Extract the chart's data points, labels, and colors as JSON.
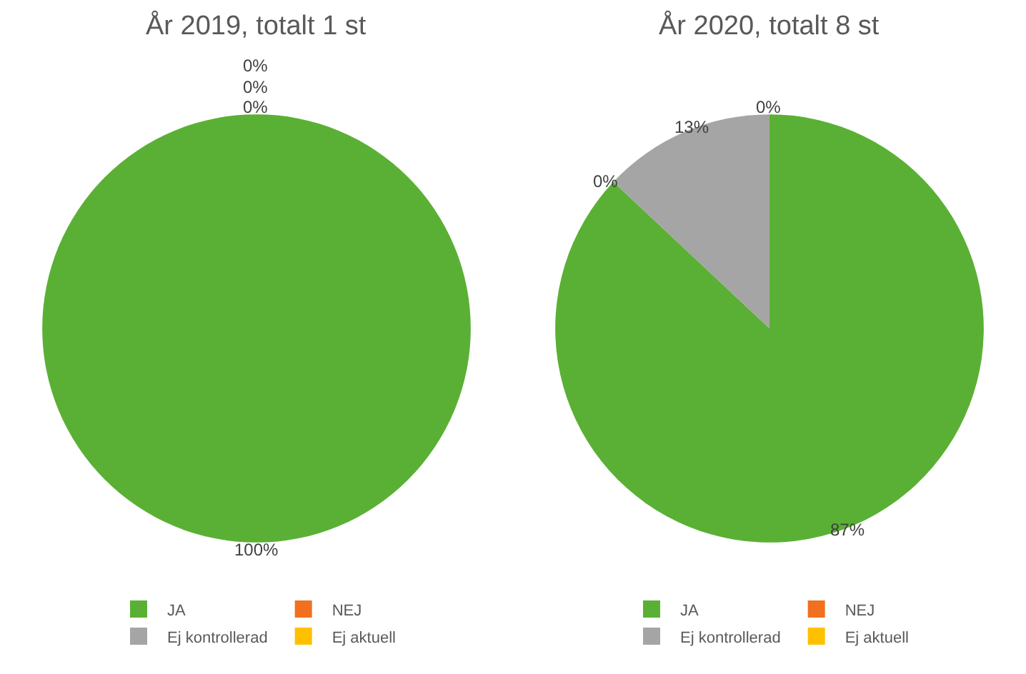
{
  "chart_data": [
    {
      "type": "pie",
      "title": "År 2019, totalt 1 st",
      "categories": [
        "JA",
        "NEJ",
        "Ej kontrollerad",
        "Ej aktuell"
      ],
      "values": [
        100,
        0,
        0,
        0
      ],
      "colors": [
        "#5ab034",
        "#f07020",
        "#a5a5a5",
        "#ffc000"
      ],
      "value_labels": [
        "100%",
        "0%",
        "0%",
        "0%"
      ],
      "legend": "bottom"
    },
    {
      "type": "pie",
      "title": "År 2020, totalt 8 st",
      "categories": [
        "JA",
        "NEJ",
        "Ej kontrollerad",
        "Ej aktuell"
      ],
      "values": [
        87,
        0,
        13,
        0
      ],
      "colors": [
        "#5ab034",
        "#f07020",
        "#a5a5a5",
        "#ffc000"
      ],
      "value_labels": [
        "87%",
        "0%",
        "13%",
        "0%"
      ],
      "legend": "bottom"
    }
  ]
}
